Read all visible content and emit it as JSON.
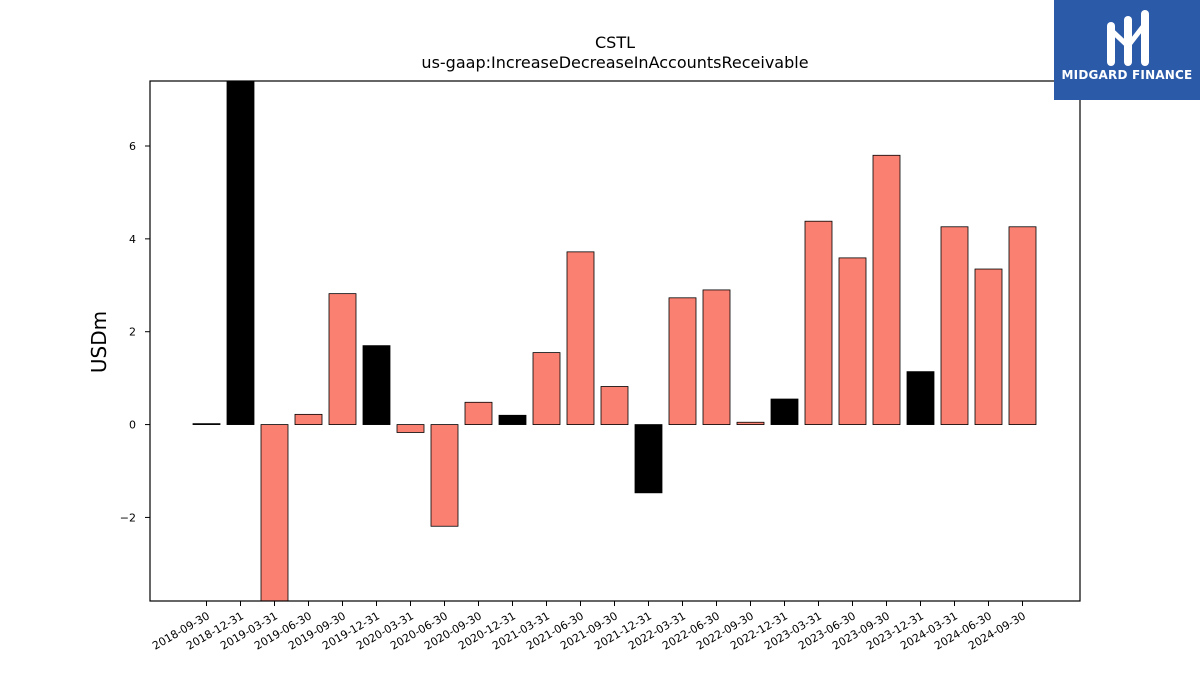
{
  "brand": {
    "name": "MIDGARD FINANCE",
    "background_color": "#2b5aa8",
    "icon": "midgard-logo-mark"
  },
  "chart_data": {
    "type": "bar",
    "title": "CSTL",
    "subtitle": "us-gaap:IncreaseDecreaseInAccountsReceivable",
    "xlabel": "",
    "ylabel": "USDm",
    "ylim": [
      -3.8,
      7.4
    ],
    "yticks": [
      -2,
      0,
      2,
      4,
      6
    ],
    "ytick_labels": [
      "−2",
      "0",
      "2",
      "4",
      "6"
    ],
    "categories": [
      "2018-09-30",
      "2018-12-31",
      "2019-03-31",
      "2019-06-30",
      "2019-09-30",
      "2019-12-31",
      "2020-03-31",
      "2020-06-30",
      "2020-09-30",
      "2020-12-31",
      "2021-03-31",
      "2021-06-30",
      "2021-09-30",
      "2021-12-31",
      "2022-03-31",
      "2022-06-30",
      "2022-09-30",
      "2022-12-31",
      "2023-03-31",
      "2023-06-30",
      "2023-09-30",
      "2023-12-31",
      "2024-03-31",
      "2024-06-30",
      "2024-09-30"
    ],
    "values": [
      0.02,
      7.4,
      -3.8,
      0.22,
      2.82,
      1.7,
      -0.17,
      -2.19,
      0.48,
      0.2,
      1.55,
      3.72,
      0.82,
      -1.47,
      2.73,
      2.9,
      0.05,
      0.55,
      4.38,
      3.59,
      5.8,
      1.14,
      4.26,
      3.35,
      4.26
    ],
    "colors": [
      "#000000",
      "#000000",
      "#fa8072",
      "#fa8072",
      "#fa8072",
      "#000000",
      "#fa8072",
      "#fa8072",
      "#fa8072",
      "#000000",
      "#fa8072",
      "#fa8072",
      "#fa8072",
      "#000000",
      "#fa8072",
      "#fa8072",
      "#fa8072",
      "#000000",
      "#fa8072",
      "#fa8072",
      "#fa8072",
      "#000000",
      "#fa8072",
      "#fa8072",
      "#fa8072"
    ],
    "grid": false,
    "legend": "none"
  }
}
